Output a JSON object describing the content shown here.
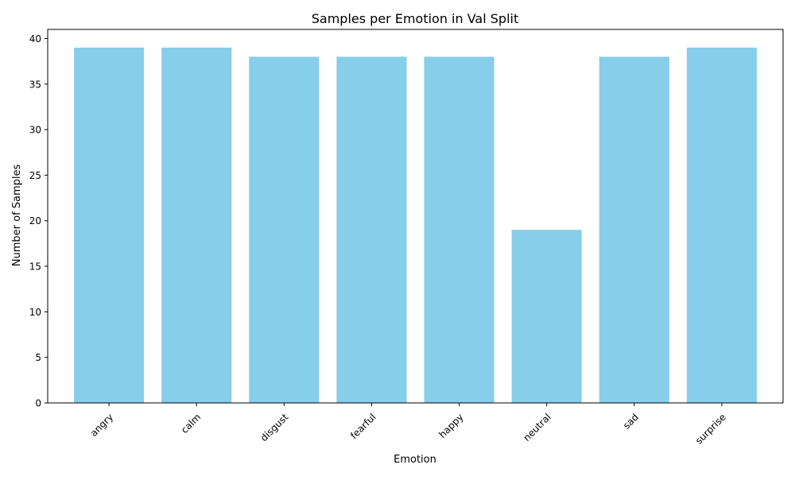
{
  "chart_data": {
    "type": "bar",
    "title": "Samples per Emotion in Val Split",
    "xlabel": "Emotion",
    "ylabel": "Number of Samples",
    "categories": [
      "angry",
      "calm",
      "disgust",
      "fearful",
      "happy",
      "neutral",
      "sad",
      "surprise"
    ],
    "values": [
      39,
      39,
      38,
      38,
      38,
      19,
      38,
      39
    ],
    "ylim": [
      0,
      41
    ],
    "yticks": [
      "0",
      "5",
      "10",
      "15",
      "20",
      "25",
      "30",
      "35",
      "40"
    ],
    "grid": false,
    "legend": "none",
    "bar_color": "#87ceeb"
  }
}
